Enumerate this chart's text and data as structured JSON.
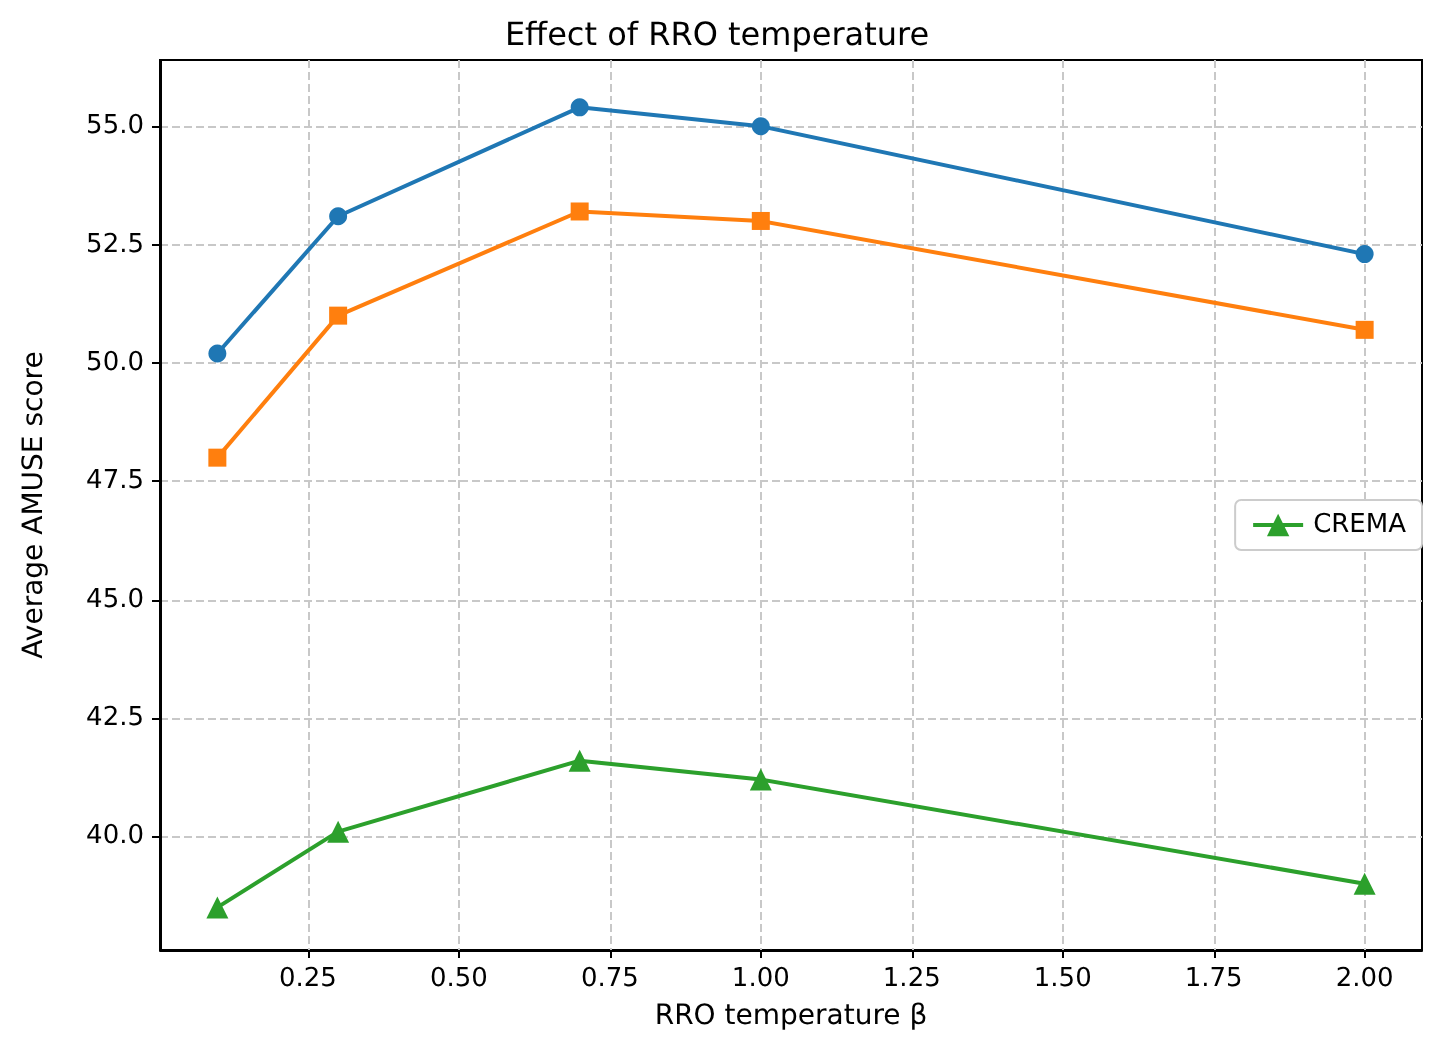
{
  "chart_data": {
    "type": "line",
    "title": "Effect of RRO temperature",
    "xlabel": "RRO temperature β",
    "ylabel": "Average AMUSE score",
    "x": [
      0.1,
      0.3,
      0.7,
      1.0,
      2.0
    ],
    "series": [
      {
        "color": "#1f77b4",
        "marker": "circle",
        "values": [
          50.2,
          53.1,
          55.4,
          55.0,
          52.3
        ]
      },
      {
        "color": "#ff7f0e",
        "marker": "square",
        "values": [
          48.0,
          51.0,
          53.2,
          53.0,
          50.7
        ]
      },
      {
        "name": "CREMA",
        "color": "#2ca02c",
        "marker": "triangle",
        "values": [
          38.5,
          40.1,
          41.6,
          41.2,
          39.0
        ]
      }
    ],
    "xlim": [
      0.005,
      2.095
    ],
    "xticks": [
      {
        "value": 0.25,
        "label": "0.25"
      },
      {
        "value": 0.5,
        "label": "0.50"
      },
      {
        "value": 0.75,
        "label": "0.75"
      },
      {
        "value": 1.0,
        "label": "1.00"
      },
      {
        "value": 1.25,
        "label": "1.25"
      },
      {
        "value": 1.5,
        "label": "1.50"
      },
      {
        "value": 1.75,
        "label": "1.75"
      },
      {
        "value": 2.0,
        "label": "2.00"
      }
    ],
    "ylim": [
      37.6,
      56.4
    ],
    "yticks": [
      {
        "value": 40,
        "label": "40.0"
      },
      {
        "value": 42.5,
        "label": "42.5"
      },
      {
        "value": 45,
        "label": "45.0"
      },
      {
        "value": 47.5,
        "label": "47.5"
      },
      {
        "value": 50,
        "label": "50.0"
      },
      {
        "value": 52.5,
        "label": "52.5"
      },
      {
        "value": 55,
        "label": "55.0"
      }
    ],
    "grid": true,
    "legend": "right",
    "line_style": "solid"
  }
}
